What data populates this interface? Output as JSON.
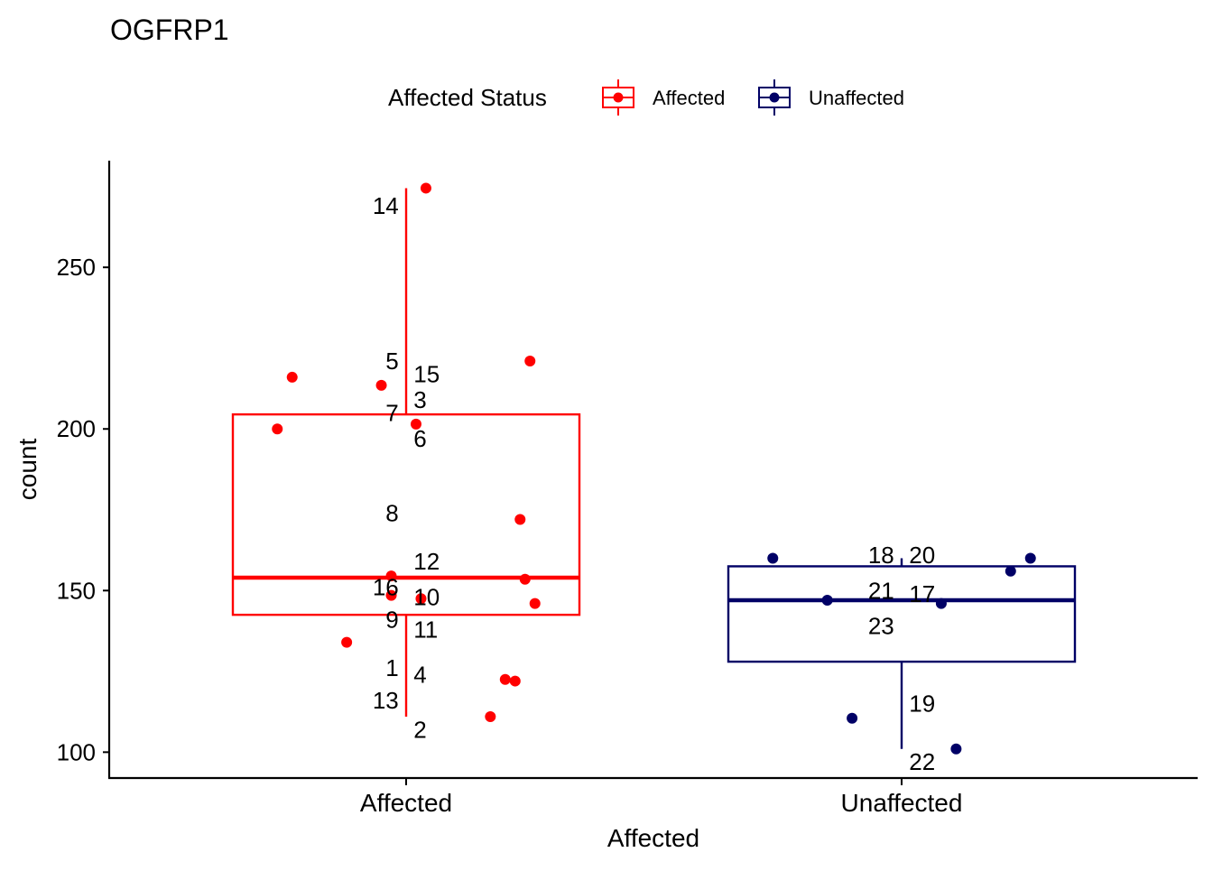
{
  "chart_data": {
    "type": "boxplot",
    "title": "OGFRP1",
    "xlabel": "Affected",
    "ylabel": "count",
    "ylim": [
      92,
      283
    ],
    "yticks": [
      100,
      150,
      200,
      250
    ],
    "categories": [
      "Affected",
      "Unaffected"
    ],
    "legend": {
      "title": "Affected Status",
      "position": "top",
      "entries": [
        {
          "label": "Affected",
          "color": "#ff0000"
        },
        {
          "label": "Unaffected",
          "color": "#000066"
        }
      ]
    },
    "boxes": [
      {
        "category": "Affected",
        "color": "#ff0000",
        "lower_whisker": 111,
        "q1": 142.5,
        "median": 154,
        "q3": 204.5,
        "upper_whisker": 274.5
      },
      {
        "category": "Unaffected",
        "color": "#000066",
        "lower_whisker": 101,
        "q1": 128,
        "median": 147,
        "q3": 157.5,
        "upper_whisker": 160
      }
    ],
    "points": [
      {
        "id": "1",
        "group": "Affected",
        "value": 134,
        "jitter": -0.12,
        "lx": -0.05,
        "ly": 126
      },
      {
        "id": "2",
        "group": "Affected",
        "value": 111,
        "jitter": 0.17,
        "lx": 0.05,
        "ly": 107
      },
      {
        "id": "3",
        "group": "Affected",
        "value": 221,
        "jitter": 0.25,
        "lx": 0.05,
        "ly": 209
      },
      {
        "id": "4",
        "group": "Affected",
        "value": 122,
        "jitter": 0.22,
        "lx": 0.05,
        "ly": 124
      },
      {
        "id": "5",
        "group": "Affected",
        "value": 213.5,
        "jitter": -0.05,
        "lx": -0.05,
        "ly": 221
      },
      {
        "id": "6",
        "group": "Affected",
        "value": 201.5,
        "jitter": 0.02,
        "lx": 0.05,
        "ly": 197
      },
      {
        "id": "7",
        "group": "Affected",
        "value": 200,
        "jitter": -0.26,
        "lx": -0.05,
        "ly": 205
      },
      {
        "id": "8",
        "group": "Affected",
        "value": 172,
        "jitter": 0.23,
        "lx": -0.05,
        "ly": 174
      },
      {
        "id": "9",
        "group": "Affected",
        "value": 148.5,
        "jitter": -0.03,
        "lx": -0.05,
        "ly": 141
      },
      {
        "id": "10",
        "group": "Affected",
        "value": 147.5,
        "jitter": 0.03,
        "lx": 0.05,
        "ly": 148
      },
      {
        "id": "11",
        "group": "Affected",
        "value": 146,
        "jitter": 0.26,
        "lx": 0.05,
        "ly": 138
      },
      {
        "id": "12",
        "group": "Affected",
        "value": 153.5,
        "jitter": 0.24,
        "lx": 0.05,
        "ly": 159
      },
      {
        "id": "13",
        "group": "Affected",
        "value": 122.5,
        "jitter": 0.2,
        "lx": -0.05,
        "ly": 116
      },
      {
        "id": "14",
        "group": "Affected",
        "value": 274.5,
        "jitter": 0.04,
        "lx": -0.05,
        "ly": 269
      },
      {
        "id": "15",
        "group": "Affected",
        "value": 216,
        "jitter": -0.23,
        "lx": 0.05,
        "ly": 217
      },
      {
        "id": "16",
        "group": "Affected",
        "value": 154.5,
        "jitter": -0.03,
        "lx": -0.05,
        "ly": 151
      },
      {
        "id": "17",
        "group": "Unaffected",
        "value": 146,
        "jitter": 0.08,
        "lx": 0.05,
        "ly": 149
      },
      {
        "id": "18",
        "group": "Unaffected",
        "value": 160,
        "jitter": -0.26,
        "lx": -0.05,
        "ly": 161
      },
      {
        "id": "19",
        "group": "Unaffected",
        "value": 110.5,
        "jitter": -0.1,
        "lx": 0.05,
        "ly": 115
      },
      {
        "id": "20",
        "group": "Unaffected",
        "value": 160,
        "jitter": 0.26,
        "lx": 0.05,
        "ly": 161
      },
      {
        "id": "21",
        "group": "Unaffected",
        "value": 147,
        "jitter": -0.15,
        "lx": -0.05,
        "ly": 150
      },
      {
        "id": "22",
        "group": "Unaffected",
        "value": 101,
        "jitter": 0.11,
        "lx": 0.05,
        "ly": 97
      },
      {
        "id": "23",
        "group": "Unaffected",
        "value": 156,
        "jitter": 0.22,
        "lx": -0.05,
        "ly": 139
      }
    ]
  }
}
